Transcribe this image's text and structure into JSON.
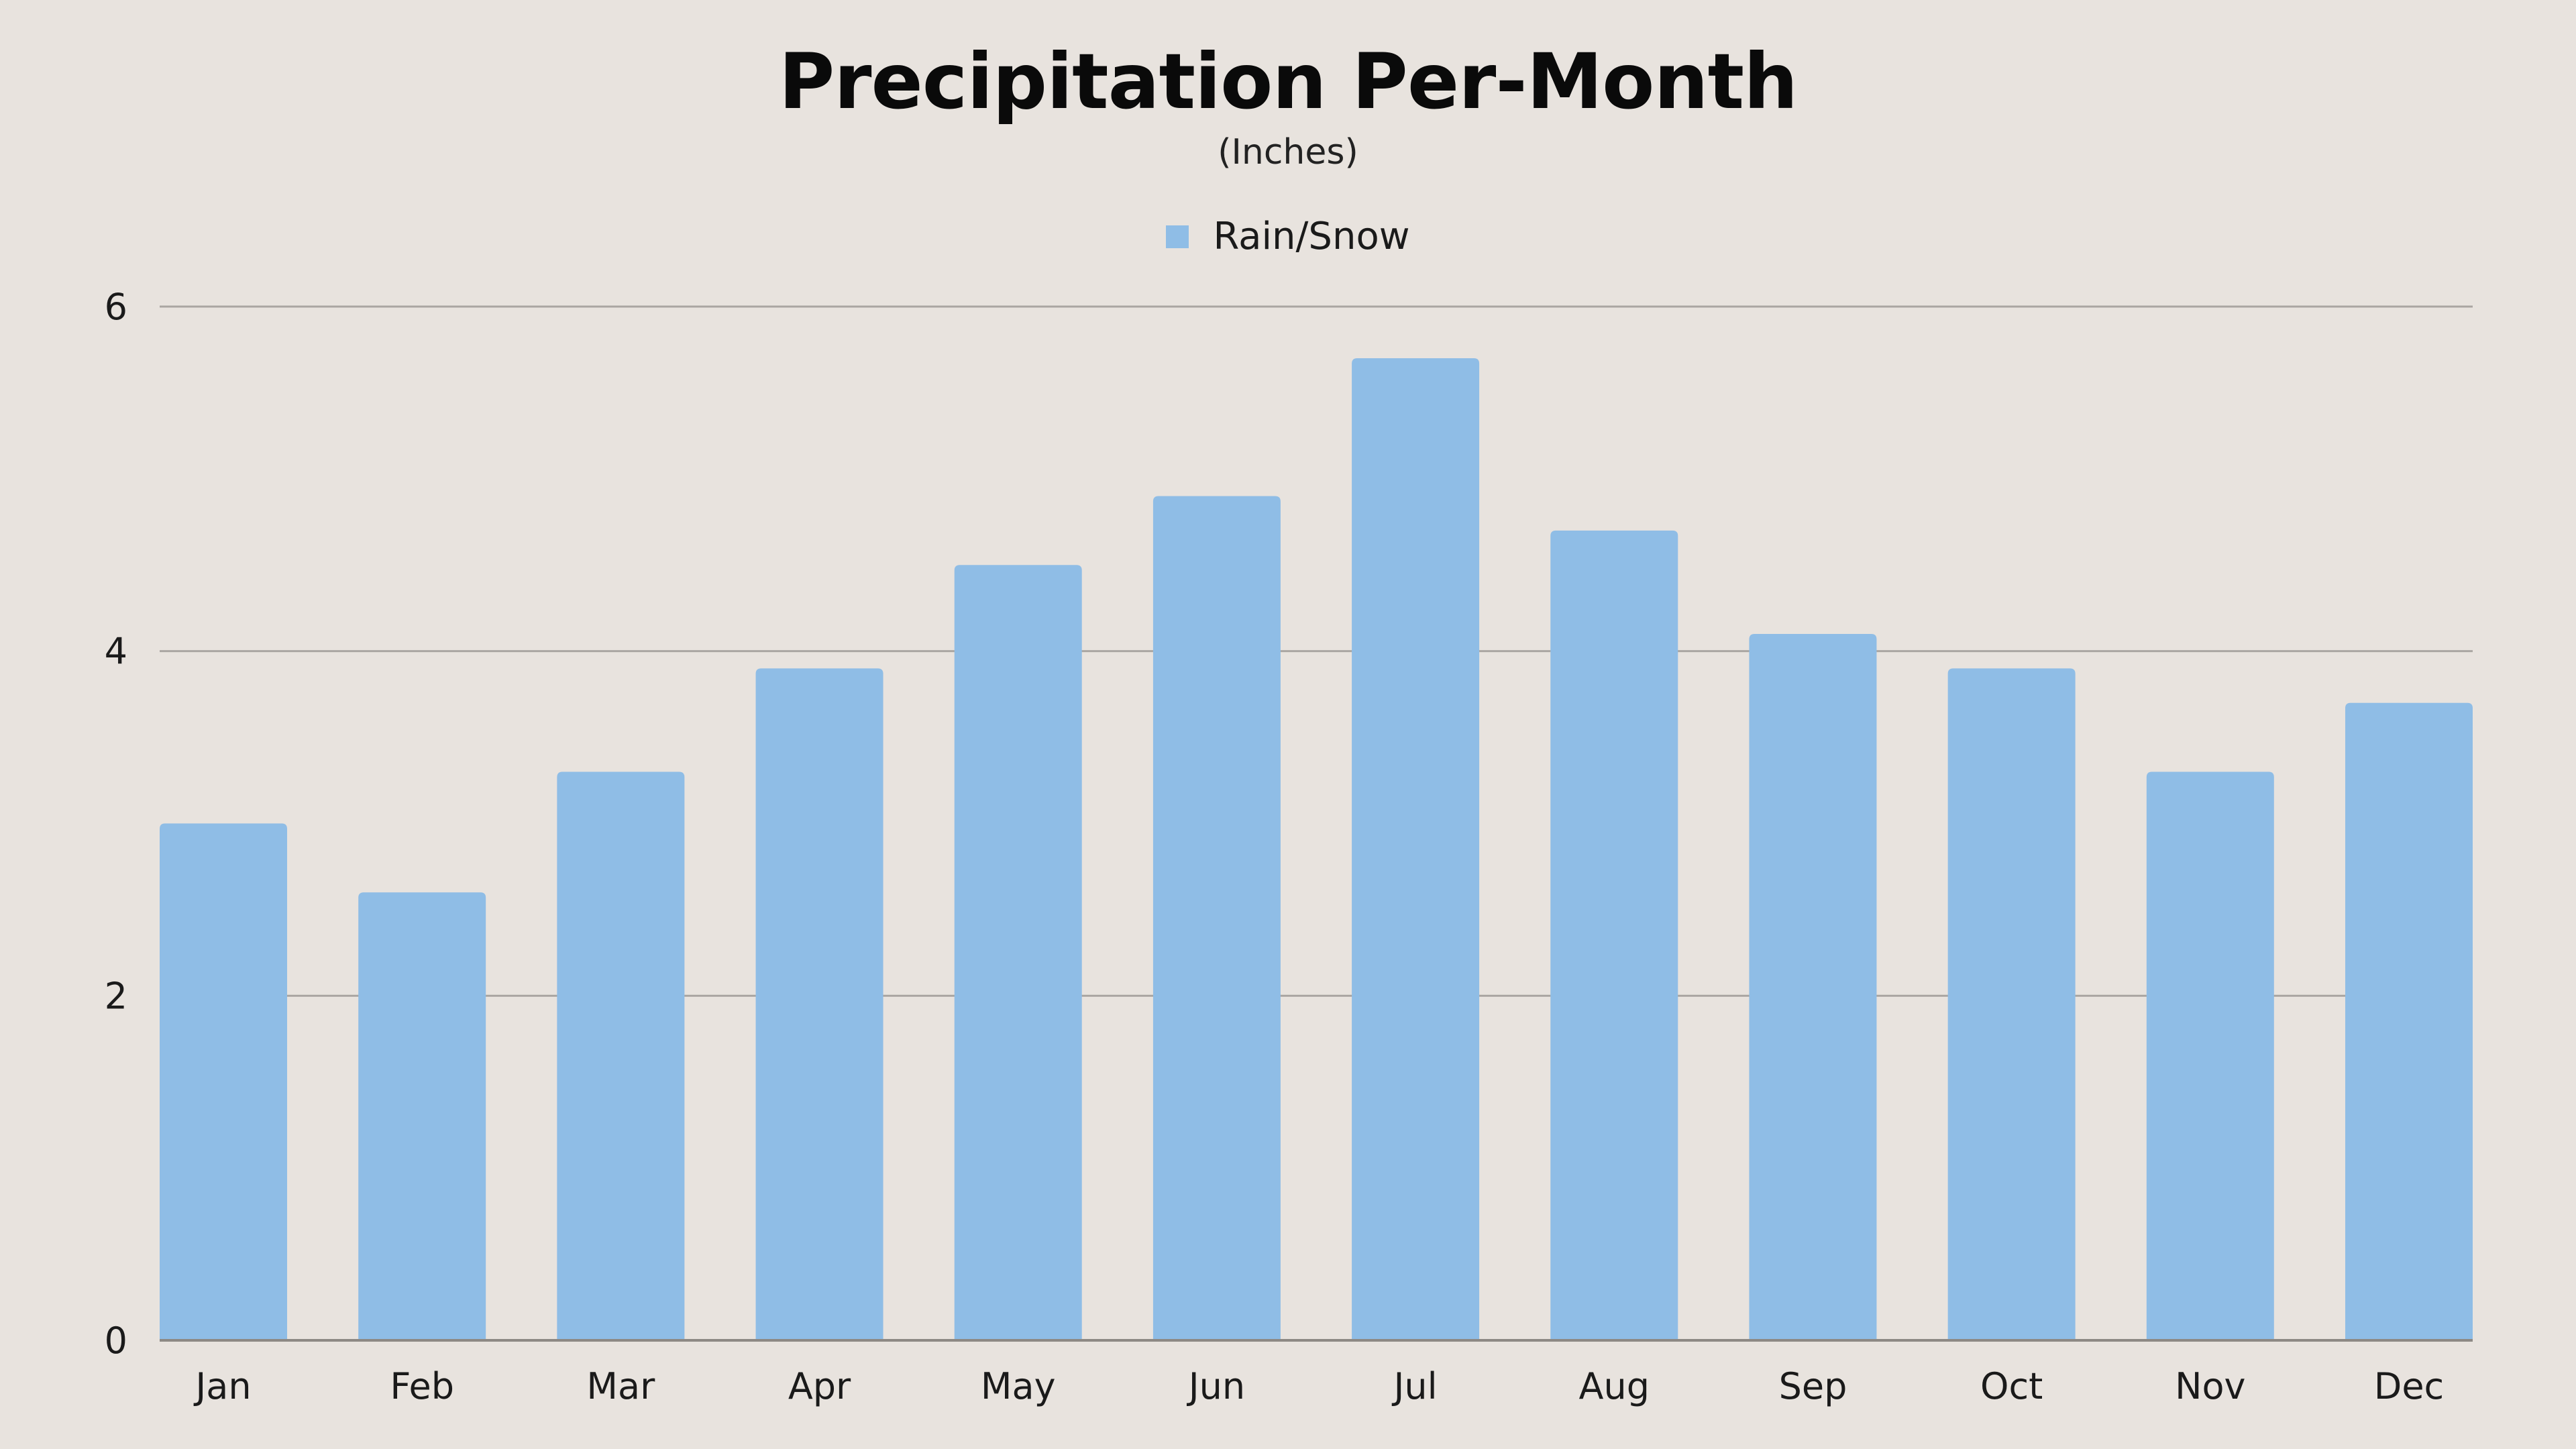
{
  "chart_data": {
    "type": "bar",
    "title": "Precipitation Per-Month",
    "subtitle": "(Inches)",
    "categories": [
      "Jan",
      "Feb",
      "Mar",
      "Apr",
      "May",
      "Jun",
      "Jul",
      "Aug",
      "Sep",
      "Oct",
      "Nov",
      "Dec"
    ],
    "series": [
      {
        "name": "Rain/Snow",
        "values": [
          3.0,
          2.6,
          3.3,
          3.9,
          4.5,
          4.9,
          5.7,
          4.7,
          4.1,
          3.9,
          3.3,
          3.7
        ],
        "color": "#8fbde6"
      }
    ],
    "y_ticks": [
      "0",
      "2",
      "4",
      "6"
    ],
    "ylim": [
      0,
      6
    ],
    "grid": true,
    "legend_position": "top-center",
    "xlabel": "",
    "ylabel": ""
  },
  "colors": {
    "background": "#e8e3de",
    "gridline": "#aaa6a2",
    "axis": "#8d8984",
    "text": "#1a1a1a"
  }
}
